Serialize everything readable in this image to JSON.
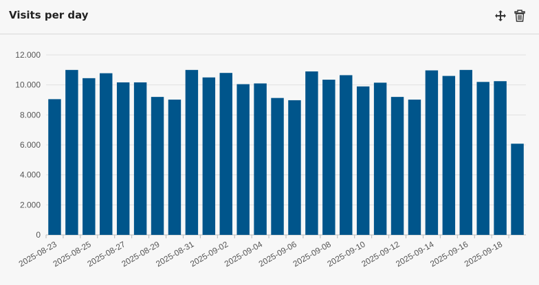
{
  "chart_data": {
    "type": "bar",
    "title": "Visits per day",
    "categories": [
      "2025-08-23",
      null,
      "2025-08-25",
      null,
      "2025-08-27",
      null,
      "2025-08-29",
      null,
      "2025-08-31",
      null,
      "2025-09-02",
      null,
      "2025-09-04",
      null,
      "2025-09-06",
      null,
      "2025-09-08",
      null,
      "2025-09-10",
      null,
      "2025-09-12",
      null,
      "2025-09-14",
      null,
      "2025-09-16",
      null,
      "2025-09-18",
      null
    ],
    "values": [
      9050,
      11000,
      10450,
      10780,
      10170,
      10170,
      9200,
      9020,
      11000,
      10500,
      10800,
      10050,
      10100,
      9130,
      8980,
      10900,
      10350,
      10650,
      9900,
      10150,
      9200,
      9020,
      10970,
      10600,
      11000,
      10200,
      10250,
      6080
    ],
    "color": "#00558b",
    "ylim": [
      0,
      12000
    ],
    "yticks": [
      0,
      {
        "value": 2000,
        "label": "2.000"
      },
      {
        "value": 4000,
        "label": "4.000"
      },
      {
        "value": 6000,
        "label": "6.000"
      },
      {
        "value": 8000,
        "label": "8.000"
      },
      {
        "value": 10000,
        "label": "10.000"
      },
      {
        "value": 12000,
        "label": "12.000"
      }
    ],
    "grid": true
  }
}
